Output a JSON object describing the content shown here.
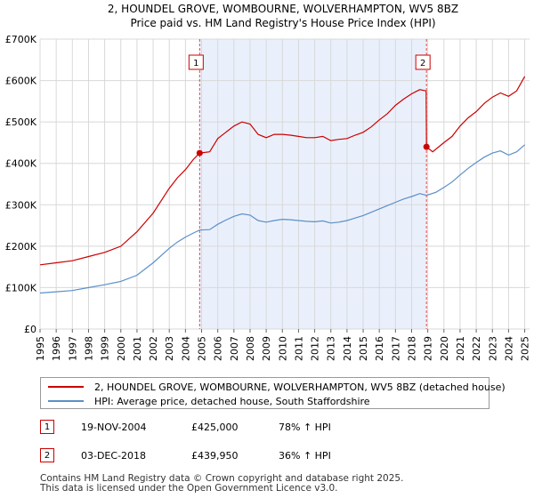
{
  "chart_data": {
    "type": "line",
    "title": "2, HOUNDEL GROVE, WOMBOURNE, WOLVERHAMPTON, WV5 8BZ",
    "subtitle": "Price paid vs. HM Land Registry's House Price Index (HPI)",
    "xlim": [
      1995.0,
      2025.3
    ],
    "ylim": [
      0,
      700000
    ],
    "y_ticks": [
      0,
      100000,
      200000,
      300000,
      400000,
      500000,
      600000,
      700000
    ],
    "y_tick_labels": [
      "£0",
      "£100K",
      "£200K",
      "£300K",
      "£400K",
      "£500K",
      "£600K",
      "£700K"
    ],
    "x_ticks": [
      1995,
      1996,
      1997,
      1998,
      1999,
      2000,
      2001,
      2002,
      2003,
      2004,
      2005,
      2006,
      2007,
      2008,
      2009,
      2010,
      2011,
      2012,
      2013,
      2014,
      2015,
      2016,
      2017,
      2018,
      2019,
      2020,
      2021,
      2022,
      2023,
      2024,
      2025
    ],
    "x_tick_labels": [
      "1995",
      "1996",
      "1997",
      "1998",
      "1999",
      "2000",
      "2001",
      "2002",
      "2003",
      "2004",
      "2005",
      "2006",
      "2007",
      "2008",
      "2009",
      "2010",
      "2011",
      "2012",
      "2013",
      "2014",
      "2015",
      "2016",
      "2017",
      "2018",
      "2019",
      "2020",
      "2021",
      "2022",
      "2023",
      "2024",
      "2025"
    ],
    "grid": true,
    "shaded_period": [
      2004.88,
      2018.92
    ],
    "series": [
      {
        "name": "2, HOUNDEL GROVE, WOMBOURNE, WOLVERHAMPTON, WV5 8BZ (detached house)",
        "color": "#cc0000",
        "x": [
          1995.0,
          1996.0,
          1997.0,
          1998.0,
          1999.0,
          2000.0,
          2001.0,
          2002.0,
          2003.0,
          2003.5,
          2004.0,
          2004.5,
          2004.88,
          2005.5,
          2006.0,
          2006.5,
          2007.0,
          2007.5,
          2008.0,
          2008.5,
          2009.0,
          2009.5,
          2010.0,
          2010.5,
          2011.0,
          2011.5,
          2012.0,
          2012.5,
          2013.0,
          2013.5,
          2014.0,
          2014.5,
          2015.0,
          2015.5,
          2016.0,
          2016.5,
          2017.0,
          2017.5,
          2018.0,
          2018.5,
          2018.9,
          2018.92,
          2019.3,
          2020.0,
          2020.5,
          2021.0,
          2021.5,
          2022.0,
          2022.5,
          2023.0,
          2023.5,
          2024.0,
          2024.5,
          2025.0
        ],
        "y": [
          155000,
          160000,
          165000,
          175000,
          185000,
          200000,
          235000,
          280000,
          340000,
          365000,
          385000,
          410000,
          425000,
          428000,
          460000,
          475000,
          490000,
          500000,
          495000,
          470000,
          462000,
          470000,
          470000,
          468000,
          465000,
          462000,
          462000,
          465000,
          455000,
          458000,
          460000,
          468000,
          475000,
          488000,
          505000,
          520000,
          540000,
          555000,
          568000,
          578000,
          575000,
          439950,
          428000,
          450000,
          465000,
          490000,
          510000,
          525000,
          545000,
          560000,
          570000,
          562000,
          575000,
          610000
        ]
      },
      {
        "name": "HPI: Average price, detached house, South Staffordshire",
        "color": "#5b8fc9",
        "x": [
          1995.0,
          1996.0,
          1997.0,
          1998.0,
          1999.0,
          2000.0,
          2001.0,
          2002.0,
          2003.0,
          2003.5,
          2004.0,
          2004.5,
          2004.88,
          2005.5,
          2006.0,
          2006.5,
          2007.0,
          2007.5,
          2008.0,
          2008.5,
          2009.0,
          2009.5,
          2010.0,
          2010.5,
          2011.0,
          2011.5,
          2012.0,
          2012.5,
          2013.0,
          2013.5,
          2014.0,
          2014.5,
          2015.0,
          2015.5,
          2016.0,
          2016.5,
          2017.0,
          2017.5,
          2018.0,
          2018.5,
          2018.92,
          2019.5,
          2020.0,
          2020.5,
          2021.0,
          2021.5,
          2022.0,
          2022.5,
          2023.0,
          2023.5,
          2024.0,
          2024.5,
          2025.0
        ],
        "y": [
          87000,
          90000,
          93000,
          100000,
          107000,
          115000,
          130000,
          160000,
          195000,
          210000,
          222000,
          232000,
          239000,
          240000,
          253000,
          263000,
          272000,
          278000,
          275000,
          262000,
          258000,
          262000,
          265000,
          264000,
          262000,
          260000,
          259000,
          261000,
          256000,
          258000,
          262000,
          268000,
          274000,
          282000,
          290000,
          298000,
          306000,
          314000,
          320000,
          327000,
          323000,
          330000,
          342000,
          355000,
          372000,
          388000,
          402000,
          415000,
          425000,
          430000,
          420000,
          428000,
          445000
        ]
      }
    ],
    "annotations": [
      {
        "label": "1",
        "x": 2004.88,
        "y": 425000
      },
      {
        "label": "2",
        "x": 2018.92,
        "y": 439950
      }
    ]
  },
  "legend": {
    "property_label": "2, HOUNDEL GROVE, WOMBOURNE, WOLVERHAMPTON, WV5 8BZ (detached house)",
    "hpi_label": "HPI: Average price, detached house, South Staffordshire",
    "property_color": "#cc0000",
    "hpi_color": "#5b8fc9"
  },
  "sales": [
    {
      "num": "1",
      "date": "19-NOV-2004",
      "price": "£425,000",
      "hpi": "78% ↑ HPI"
    },
    {
      "num": "2",
      "date": "03-DEC-2018",
      "price": "£439,950",
      "hpi": "36% ↑ HPI"
    }
  ],
  "footer": {
    "line1": "Contains HM Land Registry data © Crown copyright and database right 2025.",
    "line2": "This data is licensed under the Open Government Licence v3.0."
  }
}
